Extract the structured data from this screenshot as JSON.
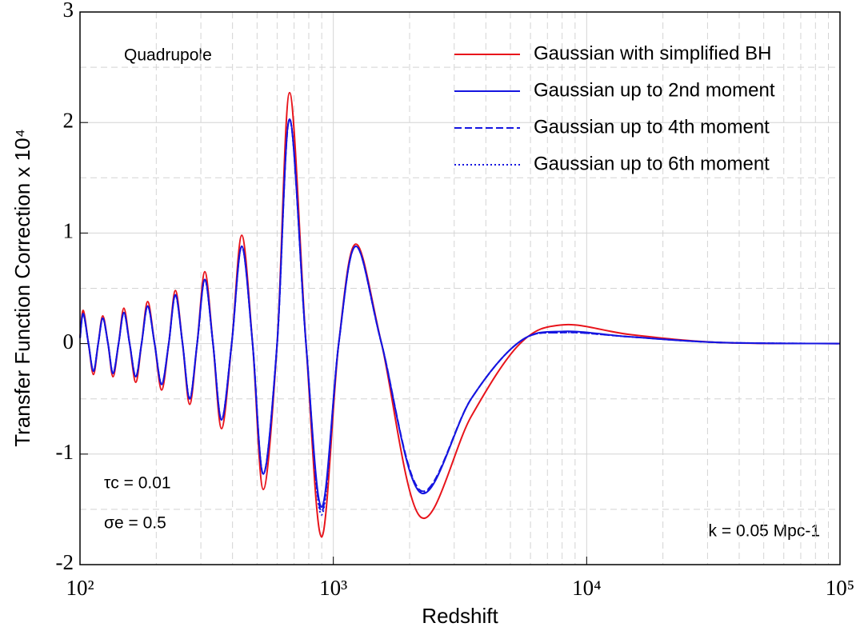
{
  "chart_data": {
    "type": "line",
    "xlabel": "Redshift",
    "ylabel": "Transfer Function Correction x 10⁴",
    "xscale": "log",
    "grid": true,
    "legend": "upper right",
    "annotations": [
      "Quadrupole",
      "τc = 0.01",
      "σe = 0.5",
      "k = 0.05 Mpc-1"
    ],
    "xlim": [
      100,
      100000
    ],
    "ylim": [
      -2,
      3
    ],
    "xticks": [
      {
        "value": 100,
        "label": "10²"
      },
      {
        "value": 1000,
        "label": "10³"
      },
      {
        "value": 10000,
        "label": "10⁴"
      },
      {
        "value": 100000,
        "label": "10⁵"
      }
    ],
    "yticks": [
      -2,
      -1,
      0,
      1,
      2,
      3
    ],
    "x": [
      100,
      103,
      108,
      113,
      118,
      123,
      129,
      135,
      142,
      149,
      157,
      166,
      175,
      185,
      197,
      210,
      224,
      238,
      254,
      271,
      290,
      311,
      335,
      362,
      397,
      435,
      480,
      529,
      600,
      672,
      780,
      899,
      1050,
      1228,
      1550,
      2212,
      3500,
      5460,
      8128,
      15000,
      33600,
      100000
    ],
    "series": [
      {
        "name": "Gaussian with simplified BH",
        "color": "#e8141b",
        "dash": "solid",
        "values": [
          0.06,
          0.3,
          0,
          -0.28,
          0,
          0.25,
          0,
          -0.3,
          0,
          0.32,
          0,
          -0.35,
          0,
          0.38,
          0,
          -0.42,
          0,
          0.48,
          0,
          -0.55,
          0,
          0.65,
          0,
          -0.77,
          0,
          0.98,
          0,
          -1.32,
          0,
          2.27,
          0,
          -1.75,
          0,
          0.9,
          0,
          -1.57,
          -0.66,
          0,
          0.17,
          0.08,
          0.01,
          0
        ]
      },
      {
        "name": "Gaussian up to 2nd moment",
        "color": "#1515e0",
        "dash": "solid",
        "values": [
          0.05,
          0.27,
          0,
          -0.25,
          0,
          0.23,
          0,
          -0.27,
          0,
          0.28,
          0,
          -0.3,
          0,
          0.34,
          0,
          -0.37,
          0,
          0.44,
          0,
          -0.5,
          0,
          0.58,
          0,
          -0.69,
          0,
          0.88,
          0,
          -1.18,
          0,
          2.03,
          0,
          -1.48,
          0,
          0.88,
          0,
          -1.35,
          -0.5,
          0.02,
          0.11,
          0.06,
          0.01,
          0
        ]
      },
      {
        "name": "Gaussian up to 4th moment",
        "color": "#1515e0",
        "dash": "dashed",
        "values": [
          0.05,
          0.27,
          0,
          -0.25,
          0,
          0.23,
          0,
          -0.27,
          0,
          0.28,
          0,
          -0.3,
          0,
          0.34,
          0,
          -0.37,
          0,
          0.44,
          0,
          -0.5,
          0,
          0.58,
          0,
          -0.69,
          0,
          0.88,
          0,
          -1.18,
          0,
          2.03,
          0,
          -1.52,
          0,
          0.88,
          0,
          -1.33,
          -0.5,
          0.02,
          0.1,
          0.06,
          0.01,
          0
        ]
      },
      {
        "name": "Gaussian up to 6th moment",
        "color": "#1515e0",
        "dash": "dotted",
        "values": [
          0.05,
          0.27,
          0,
          -0.25,
          0,
          0.23,
          0,
          -0.27,
          0,
          0.28,
          0,
          -0.3,
          0,
          0.34,
          0,
          -0.37,
          0,
          0.44,
          0,
          -0.5,
          0,
          0.58,
          0,
          -0.69,
          0,
          0.88,
          0,
          -1.18,
          0,
          2.03,
          0,
          -1.55,
          0,
          0.88,
          0,
          -1.34,
          -0.5,
          0.02,
          0.1,
          0.06,
          0.01,
          0
        ]
      }
    ]
  }
}
